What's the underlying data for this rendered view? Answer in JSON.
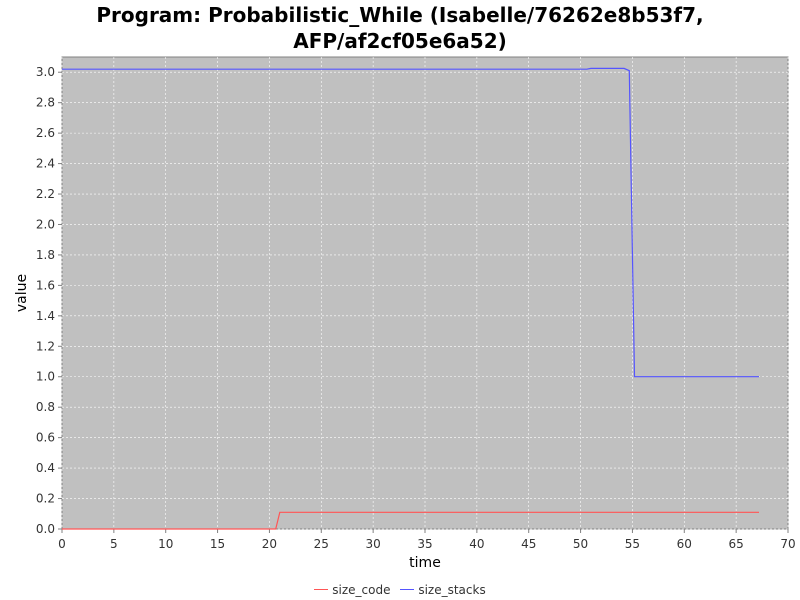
{
  "chart_data": {
    "type": "line",
    "title_lines": [
      "Program: Probabilistic_While (Isabelle/76262e8b53f7,",
      "AFP/af2cf05e6a52)"
    ],
    "xlabel": "time",
    "ylabel": "value",
    "xlim": [
      0,
      70
    ],
    "ylim": [
      0,
      3.1
    ],
    "x_ticks": [
      0,
      5,
      10,
      15,
      20,
      25,
      30,
      35,
      40,
      45,
      50,
      55,
      60,
      65,
      70
    ],
    "y_ticks": [
      "0.0",
      "0.2",
      "0.4",
      "0.6",
      "0.8",
      "1.0",
      "1.2",
      "1.4",
      "1.6",
      "1.8",
      "2.0",
      "2.2",
      "2.4",
      "2.6",
      "2.8",
      "3.0"
    ],
    "grid": true,
    "legend_position": "bottom",
    "plot_background": "#c0c0c0",
    "series": [
      {
        "name": "size_code",
        "color": "#ff5555",
        "x": [
          0,
          20.6,
          21.0,
          67.2
        ],
        "y": [
          0.0,
          0.0,
          0.11,
          0.11
        ]
      },
      {
        "name": "size_stacks",
        "color": "#5555ff",
        "x": [
          0,
          50.6,
          51.0,
          54.2,
          54.7,
          55.2,
          67.2
        ],
        "y": [
          3.02,
          3.02,
          3.025,
          3.025,
          3.01,
          1.0,
          1.0
        ]
      }
    ]
  }
}
